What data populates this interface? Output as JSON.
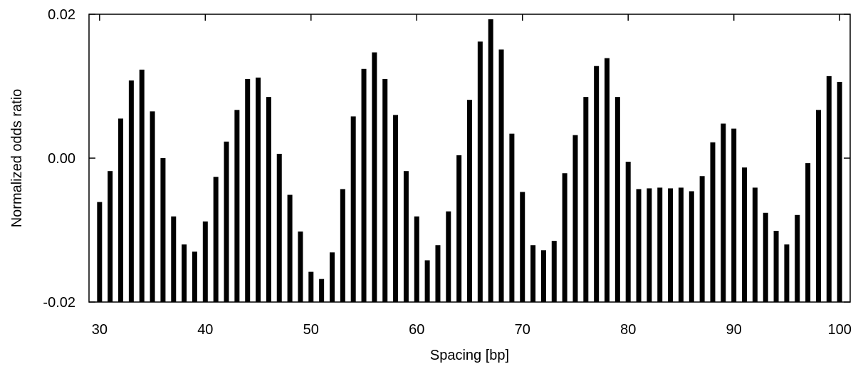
{
  "chart_data": {
    "type": "bar",
    "title": "",
    "xlabel": "Spacing [bp]",
    "ylabel": "Normalized odds ratio",
    "xlim": [
      29,
      101
    ],
    "ylim": [
      -0.02,
      0.02
    ],
    "xticks": [
      30,
      40,
      50,
      60,
      70,
      80,
      90,
      100
    ],
    "yticks": [
      -0.02,
      0.0,
      0.02
    ],
    "ytick_labels": [
      "-0.02",
      "0.00",
      "0.02"
    ],
    "grid": false,
    "legend": "none",
    "bar_color": "#000000",
    "x": [
      30,
      31,
      32,
      33,
      34,
      35,
      36,
      37,
      38,
      39,
      40,
      41,
      42,
      43,
      44,
      45,
      46,
      47,
      48,
      49,
      50,
      51,
      52,
      53,
      54,
      55,
      56,
      57,
      58,
      59,
      60,
      61,
      62,
      63,
      64,
      65,
      66,
      67,
      68,
      69,
      70,
      71,
      72,
      73,
      74,
      75,
      76,
      77,
      78,
      79,
      80,
      81,
      82,
      83,
      84,
      85,
      86,
      87,
      88,
      89,
      90,
      91,
      92,
      93,
      94,
      95,
      96,
      97,
      98,
      99,
      100
    ],
    "values": [
      -0.0061,
      -0.0018,
      0.0055,
      0.0108,
      0.0123,
      0.0065,
      0.0,
      -0.0081,
      -0.012,
      -0.013,
      -0.0088,
      -0.0026,
      0.0023,
      0.0067,
      0.011,
      0.0112,
      0.0085,
      0.0006,
      -0.0051,
      -0.0102,
      -0.0158,
      -0.0168,
      -0.0131,
      -0.0043,
      0.0058,
      0.0124,
      0.0147,
      0.011,
      0.006,
      -0.0018,
      -0.0081,
      -0.0142,
      -0.0121,
      -0.0074,
      0.0004,
      0.0081,
      0.0162,
      0.0193,
      0.0151,
      0.0034,
      -0.0047,
      -0.0121,
      -0.0128,
      -0.0115,
      -0.0021,
      0.0032,
      0.0085,
      0.0128,
      0.0139,
      0.0085,
      -0.0005,
      -0.0043,
      -0.0042,
      -0.0041,
      -0.0042,
      -0.0041,
      -0.0046,
      -0.0025,
      0.0022,
      0.0048,
      0.0041,
      -0.0013,
      -0.0041,
      -0.0076,
      -0.0101,
      -0.012,
      -0.0079,
      -0.0007,
      0.0067,
      0.0114,
      0.0106
    ]
  }
}
